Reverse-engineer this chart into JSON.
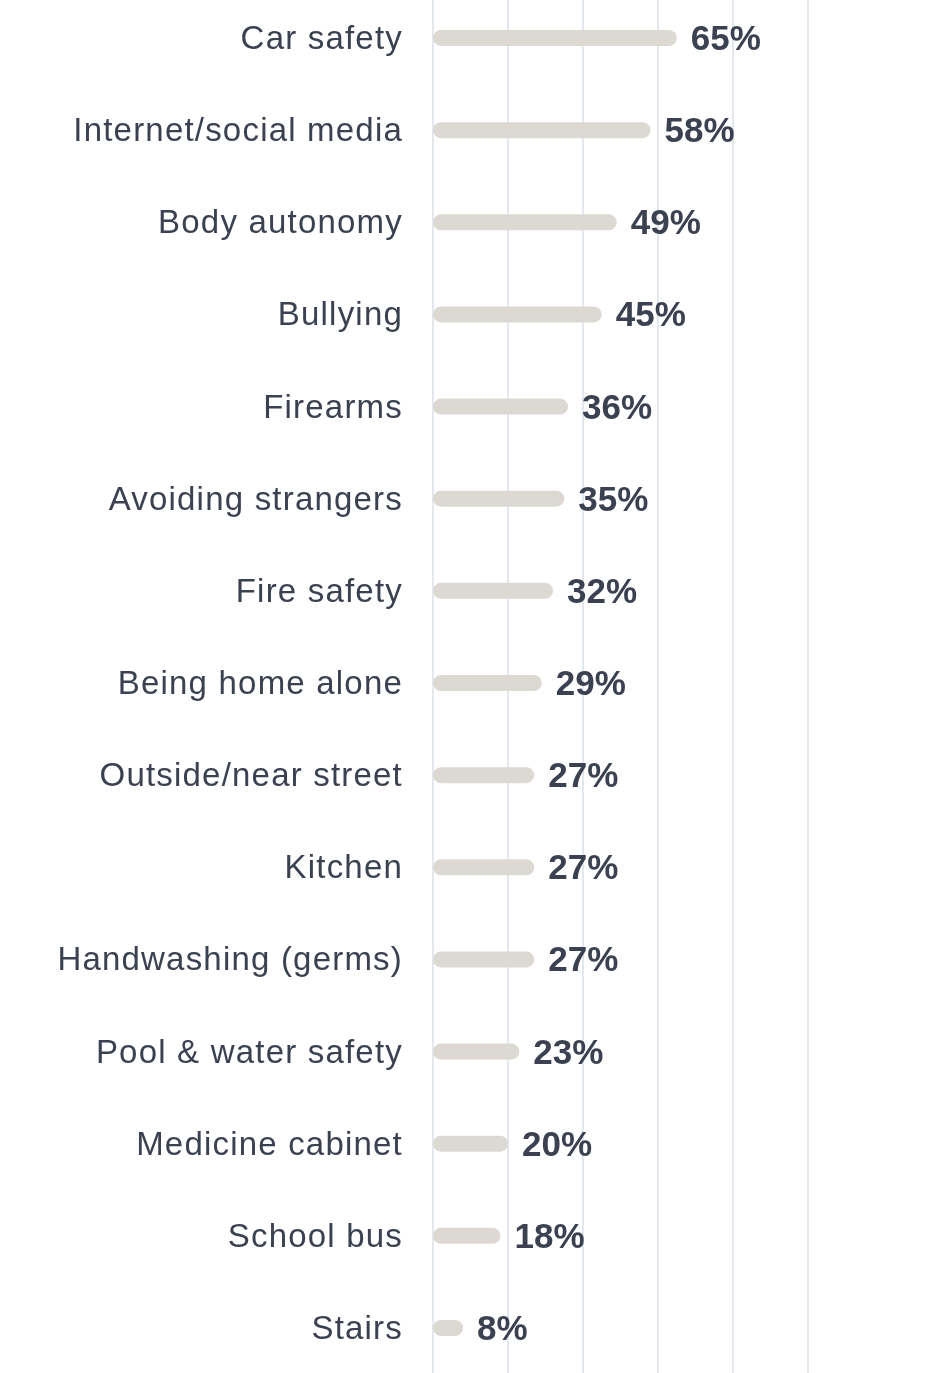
{
  "chart_data": {
    "type": "bar",
    "orientation": "horizontal",
    "categories": [
      "Car safety",
      "Internet/social media",
      "Body autonomy",
      "Bullying",
      "Firearms",
      "Avoiding strangers",
      "Fire safety",
      "Being home alone",
      "Outside/near street",
      "Kitchen",
      "Handwashing (germs)",
      "Pool & water safety",
      "Medicine cabinet",
      "School bus",
      "Stairs"
    ],
    "values": [
      65,
      58,
      49,
      45,
      36,
      35,
      32,
      29,
      27,
      27,
      27,
      23,
      20,
      18,
      8
    ],
    "value_labels": [
      "65%",
      "58%",
      "49%",
      "45%",
      "36%",
      "35%",
      "32%",
      "29%",
      "27%",
      "27%",
      "27%",
      "23%",
      "20%",
      "18%",
      "8%"
    ],
    "color": "#dcd9d2",
    "xlim": [
      0,
      100
    ],
    "xticks": [
      {
        "value": 0,
        "label": null
      },
      {
        "value": 20,
        "label": null
      },
      {
        "value": 40,
        "label": null
      },
      {
        "value": 60,
        "label": null
      },
      {
        "value": 80,
        "label": null
      },
      {
        "value": 100,
        "label": null
      }
    ],
    "grid": "x"
  }
}
